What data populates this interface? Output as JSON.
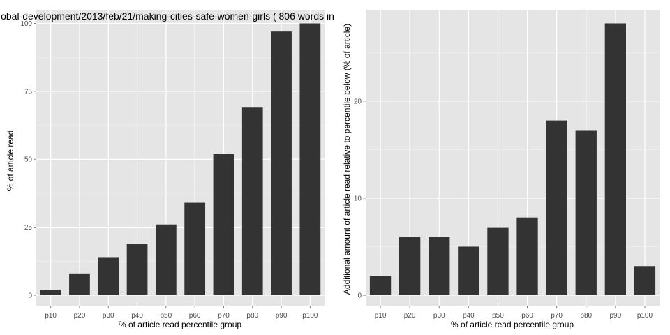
{
  "chart_data": [
    {
      "type": "bar",
      "title": "obal-development/2013/feb/21/making-cities-safe-women-girls ( 806 words in",
      "xlabel": "% of article read percentile group",
      "ylabel": "% of article read",
      "categories": [
        "p10",
        "p20",
        "p30",
        "p40",
        "p50",
        "p60",
        "p70",
        "p80",
        "p90",
        "p100"
      ],
      "values": [
        2,
        8,
        14,
        19,
        26,
        34,
        52,
        69,
        97,
        100
      ],
      "ylim": [
        0,
        105
      ],
      "yticks": [
        0,
        25,
        50,
        75,
        100
      ],
      "grid": true,
      "bar_color": "#333333",
      "panel_bg": "#e5e5e5"
    },
    {
      "type": "bar",
      "title": "",
      "xlabel": "% of article read percentile group",
      "ylabel": "Additional amount of article read relative to percentile below (% of article)",
      "categories": [
        "p10",
        "p20",
        "p30",
        "p40",
        "p50",
        "p60",
        "p70",
        "p80",
        "p90",
        "p100"
      ],
      "values": [
        2,
        6,
        6,
        5,
        7,
        8,
        18,
        17,
        28,
        3
      ],
      "ylim": [
        0,
        29.4
      ],
      "yticks": [
        0,
        10,
        20
      ],
      "grid": true,
      "bar_color": "#333333",
      "panel_bg": "#e5e5e5"
    }
  ]
}
